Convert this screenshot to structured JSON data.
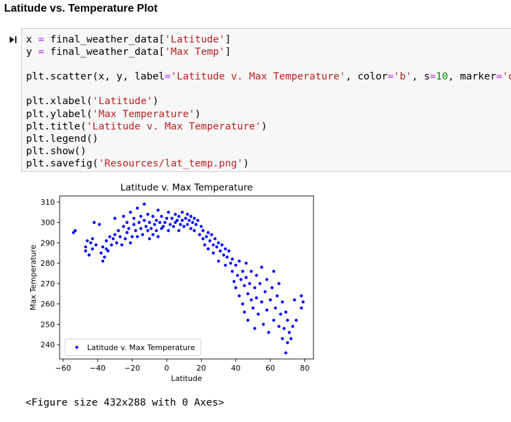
{
  "heading": "Latitude vs. Temperature Plot",
  "cell": {
    "run_icon": "run-cell-icon",
    "code_lines": [
      [
        {
          "t": "x = final_weather_data["
        },
        {
          "t": "'Latitude'",
          "c": "s"
        },
        {
          "t": "]"
        }
      ],
      [
        {
          "t": "y = final_weather_data["
        },
        {
          "t": "'Max Temp'",
          "c": "s"
        },
        {
          "t": "]"
        }
      ],
      [],
      [
        {
          "t": "plt.scatter(x, y, label="
        },
        {
          "t": "'Latitude v. Max Temperature'",
          "c": "s"
        },
        {
          "t": ", color="
        },
        {
          "t": "'b'",
          "c": "s"
        },
        {
          "t": ", s="
        },
        {
          "t": "10",
          "c": "n"
        },
        {
          "t": ", marker="
        },
        {
          "t": "'o'",
          "c": "s"
        },
        {
          "t": ")"
        }
      ],
      [],
      [
        {
          "t": "plt.xlabel("
        },
        {
          "t": "'Latitude'",
          "c": "s"
        },
        {
          "t": ")"
        }
      ],
      [
        {
          "t": "plt.ylabel("
        },
        {
          "t": "'Max Temperature'",
          "c": "s"
        },
        {
          "t": ")"
        }
      ],
      [
        {
          "t": "plt.title("
        },
        {
          "t": "'Latitude v. Max Temperature'",
          "c": "s"
        },
        {
          "t": ")"
        }
      ],
      [
        {
          "t": "plt.legend()"
        }
      ],
      [
        {
          "t": "plt.show()"
        }
      ],
      [
        {
          "t": "plt.savefig("
        },
        {
          "t": "'Resources/lat_temp.png'",
          "c": "s"
        },
        {
          "t": ")"
        }
      ]
    ]
  },
  "chart_data": {
    "type": "scatter",
    "title": "Latitude v. Max Temperature",
    "xlabel": "Latitude",
    "ylabel": "Max Temperature",
    "xlim": [
      -62,
      85
    ],
    "ylim": [
      233,
      313
    ],
    "xticks": [
      -60,
      -40,
      -20,
      0,
      20,
      40,
      60,
      80
    ],
    "yticks": [
      240,
      250,
      260,
      270,
      280,
      290,
      300,
      310
    ],
    "grid": false,
    "legend_position": "lower-left",
    "color": "#0000ff",
    "series": [
      {
        "name": "Latitude v. Max Temperature",
        "points": [
          [
            -54,
            295
          ],
          [
            -53,
            296
          ],
          [
            -47,
            288
          ],
          [
            -47,
            286
          ],
          [
            -46,
            291
          ],
          [
            -45,
            284
          ],
          [
            -44,
            290
          ],
          [
            -43,
            292
          ],
          [
            -43,
            287
          ],
          [
            -42,
            300
          ],
          [
            -41,
            289
          ],
          [
            -39,
            299
          ],
          [
            -38,
            285
          ],
          [
            -37,
            281
          ],
          [
            -37,
            288
          ],
          [
            -36,
            283
          ],
          [
            -35,
            287
          ],
          [
            -35,
            291
          ],
          [
            -34,
            286
          ],
          [
            -33,
            293
          ],
          [
            -32,
            289
          ],
          [
            -31,
            292
          ],
          [
            -30,
            302
          ],
          [
            -30,
            294
          ],
          [
            -29,
            290
          ],
          [
            -28,
            296
          ],
          [
            -27,
            293
          ],
          [
            -26,
            289
          ],
          [
            -25,
            298
          ],
          [
            -25,
            303
          ],
          [
            -24,
            292
          ],
          [
            -23,
            295
          ],
          [
            -23,
            300
          ],
          [
            -22,
            297
          ],
          [
            -21,
            305
          ],
          [
            -21,
            290
          ],
          [
            -20,
            293
          ],
          [
            -19,
            299
          ],
          [
            -19,
            302
          ],
          [
            -18,
            296
          ],
          [
            -17,
            307
          ],
          [
            -17,
            293
          ],
          [
            -16,
            300
          ],
          [
            -15,
            297
          ],
          [
            -15,
            303
          ],
          [
            -14,
            294
          ],
          [
            -13,
            301
          ],
          [
            -13,
            309
          ],
          [
            -12,
            298
          ],
          [
            -11,
            296
          ],
          [
            -11,
            304
          ],
          [
            -10,
            292
          ],
          [
            -10,
            300
          ],
          [
            -9,
            297
          ],
          [
            -8,
            303
          ],
          [
            -8,
            294
          ],
          [
            -7,
            299
          ],
          [
            -6,
            301
          ],
          [
            -6,
            296
          ],
          [
            -5,
            306
          ],
          [
            -5,
            293
          ],
          [
            -4,
            300
          ],
          [
            -3,
            297
          ],
          [
            -3,
            303
          ],
          [
            -2,
            298
          ],
          [
            -1,
            300
          ],
          [
            0,
            302
          ],
          [
            1,
            296
          ],
          [
            1,
            305
          ],
          [
            2,
            299
          ],
          [
            3,
            302
          ],
          [
            4,
            298
          ],
          [
            5,
            304
          ],
          [
            5,
            300
          ],
          [
            6,
            301
          ],
          [
            7,
            296
          ],
          [
            7,
            303
          ],
          [
            8,
            299
          ],
          [
            9,
            305
          ],
          [
            9,
            301
          ],
          [
            10,
            298
          ],
          [
            11,
            302
          ],
          [
            12,
            304
          ],
          [
            12,
            299
          ],
          [
            13,
            301
          ],
          [
            14,
            303
          ],
          [
            14,
            297
          ],
          [
            15,
            300
          ],
          [
            16,
            302
          ],
          [
            16,
            296
          ],
          [
            17,
            299
          ],
          [
            18,
            301
          ],
          [
            19,
            294
          ],
          [
            20,
            298
          ],
          [
            21,
            292
          ],
          [
            21,
            296
          ],
          [
            22,
            289
          ],
          [
            23,
            293
          ],
          [
            24,
            295
          ],
          [
            24,
            287
          ],
          [
            25,
            291
          ],
          [
            26,
            294
          ],
          [
            27,
            289
          ],
          [
            27,
            285
          ],
          [
            28,
            292
          ],
          [
            29,
            288
          ],
          [
            30,
            290
          ],
          [
            30,
            281
          ],
          [
            31,
            286
          ],
          [
            32,
            289
          ],
          [
            33,
            284
          ],
          [
            34,
            287
          ],
          [
            34,
            279
          ],
          [
            35,
            283
          ],
          [
            36,
            286
          ],
          [
            37,
            280
          ],
          [
            38,
            276
          ],
          [
            38,
            282
          ],
          [
            39,
            271
          ],
          [
            40,
            279
          ],
          [
            40,
            268
          ],
          [
            41,
            274
          ],
          [
            42,
            281
          ],
          [
            42,
            264
          ],
          [
            43,
            272
          ],
          [
            44,
            276
          ],
          [
            44,
            260
          ],
          [
            45,
            269
          ],
          [
            45,
            256
          ],
          [
            46,
            280
          ],
          [
            46,
            273
          ],
          [
            47,
            265
          ],
          [
            47,
            252
          ],
          [
            48,
            270
          ],
          [
            49,
            262
          ],
          [
            49,
            276
          ],
          [
            50,
            258
          ],
          [
            51,
            268
          ],
          [
            51,
            248
          ],
          [
            52,
            274
          ],
          [
            52,
            263
          ],
          [
            53,
            255
          ],
          [
            54,
            270
          ],
          [
            55,
            261
          ],
          [
            55,
            278
          ],
          [
            56,
            250
          ],
          [
            57,
            266
          ],
          [
            58,
            257
          ],
          [
            58,
            272
          ],
          [
            59,
            246
          ],
          [
            60,
            262
          ],
          [
            61,
            268
          ],
          [
            62,
            252
          ],
          [
            62,
            276
          ],
          [
            63,
            258
          ],
          [
            64,
            264
          ],
          [
            65,
            249
          ],
          [
            65,
            270
          ],
          [
            66,
            255
          ],
          [
            67,
            261
          ],
          [
            67,
            243
          ],
          [
            68,
            248
          ],
          [
            69,
            236
          ],
          [
            69,
            256
          ],
          [
            70,
            241
          ],
          [
            70,
            252
          ],
          [
            71,
            246
          ],
          [
            72,
            243
          ],
          [
            73,
            249
          ],
          [
            74,
            262
          ],
          [
            75,
            252
          ],
          [
            78,
            264
          ],
          [
            78,
            258
          ],
          [
            79,
            261
          ]
        ]
      }
    ]
  },
  "output_text": "<Figure size 432x288 with 0 Axes>"
}
